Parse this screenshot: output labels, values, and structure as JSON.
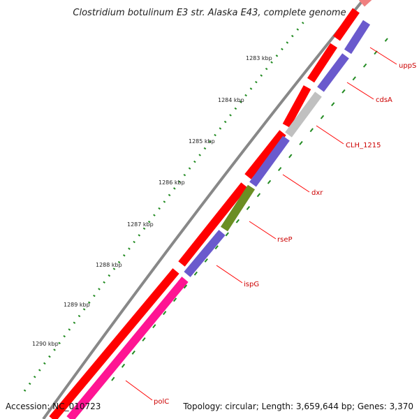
{
  "title": "Clostridium botulinum E3 str. Alaska E43, complete genome",
  "footer": {
    "accession": "Accession: NC_010723",
    "info": "Topology: circular; Length: 3,659,644 bp; Genes: 3,370"
  },
  "kbp_labels": [
    "1283 kbp",
    "1284 kbp",
    "1285 kbp",
    "1286 kbp",
    "1287 kbp",
    "1288 kbp",
    "1289 kbp",
    "1290 kbp"
  ],
  "genes": [
    {
      "name": "uppS",
      "color": "#6a5acd"
    },
    {
      "name": "cdsA",
      "color": "#6a5acd"
    },
    {
      "name": "CLH_1215",
      "color": "#c0c0c0"
    },
    {
      "name": "dxr",
      "color": "#6a5acd"
    },
    {
      "name": "rseP",
      "color": "#6b8e23"
    },
    {
      "name": "ispG",
      "color": "#6a5acd"
    },
    {
      "name": "polC",
      "color": "#ff1493"
    }
  ],
  "colors": {
    "backbone": "#888888",
    "cds": "#ff0000",
    "ticks": "#228b22",
    "label": "#cc0000"
  }
}
